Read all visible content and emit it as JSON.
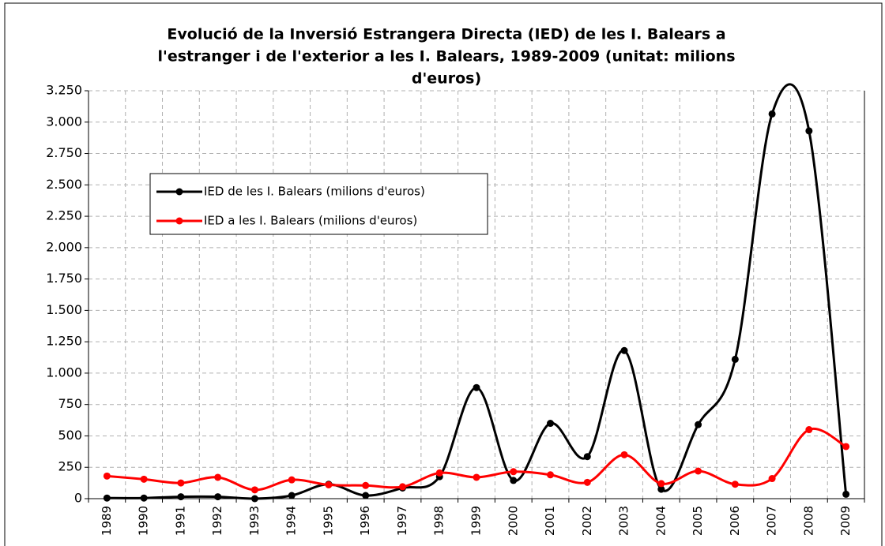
{
  "chart_data": {
    "type": "line",
    "title": [
      "Evolució de la Inversió Estrangera Directa (IED) de les I. Balears a",
      "l'estranger i de l'exterior a les I. Balears, 1989-2009 (unitat: milions",
      "d'euros)"
    ],
    "categories": [
      "1989",
      "1990",
      "1991",
      "1992",
      "1993",
      "1994",
      "1995",
      "1996",
      "1997",
      "1998",
      "1999",
      "2000",
      "2001",
      "2002",
      "2003",
      "2004",
      "2005",
      "2006",
      "2007",
      "2008",
      "2009"
    ],
    "series": [
      {
        "name": "IED de les I. Balears (milions d'euros)",
        "color": "#000000",
        "values": [
          5,
          5,
          15,
          15,
          0,
          25,
          115,
          25,
          85,
          175,
          885,
          145,
          600,
          335,
          1180,
          75,
          590,
          1110,
          3065,
          2930,
          35
        ]
      },
      {
        "name": "IED a les I. Balears (milions d'euros)",
        "color": "#ff0000",
        "values": [
          180,
          155,
          125,
          170,
          70,
          150,
          110,
          105,
          95,
          205,
          170,
          215,
          190,
          130,
          350,
          120,
          220,
          115,
          160,
          550,
          415
        ]
      }
    ],
    "ylim": [
      0,
      3250
    ],
    "yticks": [
      0,
      250,
      500,
      750,
      {
        "value": 1000,
        "label": "1.000"
      },
      {
        "value": 1250,
        "label": "1.250"
      },
      {
        "value": 1500,
        "label": "1.500"
      },
      {
        "value": 1750,
        "label": "1.750"
      },
      {
        "value": 2000,
        "label": "2.000"
      },
      {
        "value": 2250,
        "label": "2.250"
      },
      {
        "value": 2500,
        "label": "2.500"
      },
      {
        "value": 2750,
        "label": "2.750"
      },
      {
        "value": 3000,
        "label": "3.000"
      },
      {
        "value": 3250,
        "label": "3.250"
      }
    ],
    "grid": true,
    "smooth": true
  }
}
